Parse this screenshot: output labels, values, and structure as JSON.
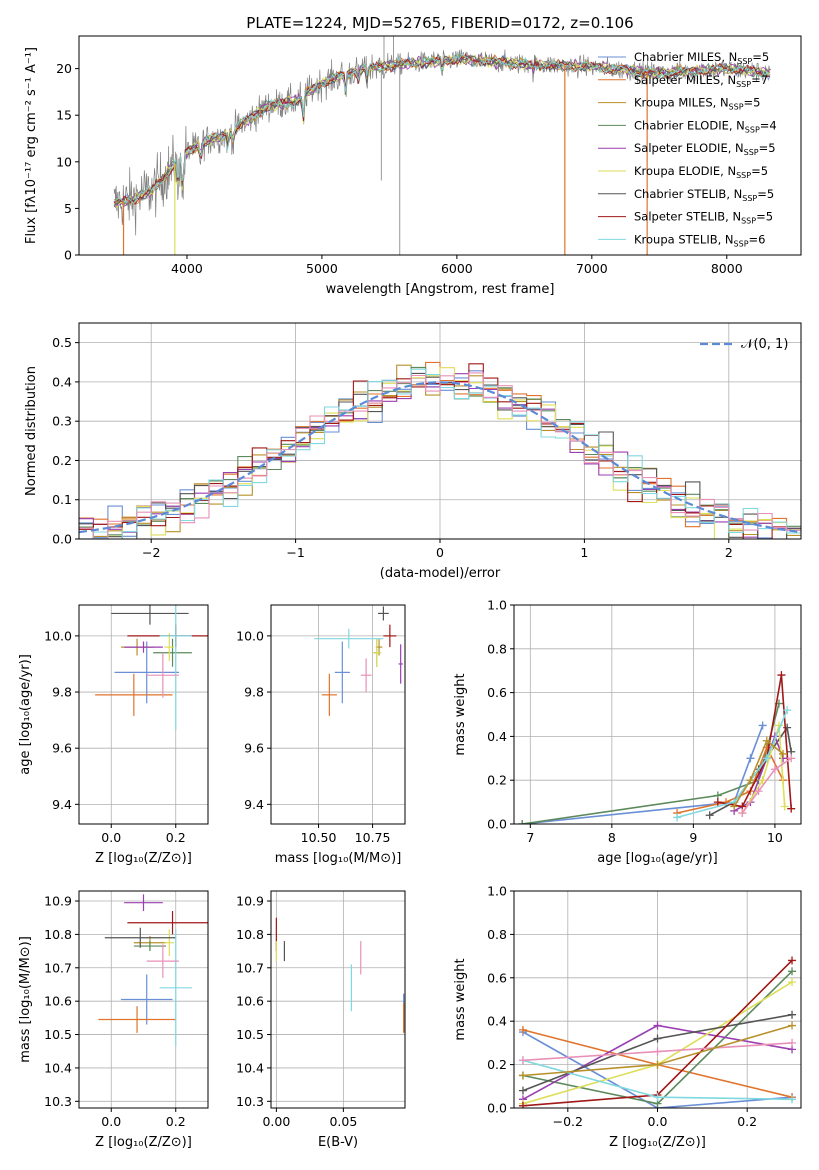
{
  "figure_title": "PLATE=1224, MJD=52765, FIBERID=0172, z=0.106",
  "colors": {
    "c0": "#6a8fd6",
    "c1": "#e0742c",
    "c2": "#b8902a",
    "c3": "#5c8a5c",
    "c4": "#9a3fb0",
    "c5": "#dede5a",
    "c6": "#555555",
    "c7": "#a01818",
    "c8": "#80d8e0",
    "c9": "#e890b8",
    "data": "#808080",
    "normal": "#5b8ad6"
  },
  "chart_data": [
    {
      "id": "spectrum",
      "type": "line",
      "xlabel": "wavelength [Angstrom, rest frame]",
      "ylabel": "Flux [fλ10⁻¹⁷ erg cm⁻² s⁻¹ A⁻¹]",
      "xlim": [
        3200,
        8550
      ],
      "ylim": [
        0,
        23.5
      ],
      "xticks": [
        4000,
        5000,
        6000,
        7000,
        8000
      ],
      "yticks": [
        0,
        5,
        10,
        15,
        20
      ],
      "grid": false,
      "legend": "right",
      "x_range": [
        3460,
        8330
      ],
      "continuum_anchors": [
        [
          3460,
          5.5
        ],
        [
          3600,
          6
        ],
        [
          3750,
          7
        ],
        [
          3950,
          10.5
        ],
        [
          4100,
          12
        ],
        [
          4300,
          13
        ],
        [
          4600,
          16
        ],
        [
          4800,
          16.5
        ],
        [
          5000,
          18.5
        ],
        [
          5300,
          20
        ],
        [
          5600,
          20.5
        ],
        [
          6000,
          21
        ],
        [
          6500,
          20.5
        ],
        [
          7000,
          20.2
        ],
        [
          7500,
          19.5
        ],
        [
          8000,
          20
        ],
        [
          8330,
          19.5
        ]
      ],
      "absorption_lines": [
        [
          3934,
          6.5
        ],
        [
          3969,
          6
        ],
        [
          4102,
          10
        ],
        [
          4304,
          11.5
        ],
        [
          4341,
          12
        ],
        [
          4861,
          14
        ],
        [
          5175,
          17.5
        ],
        [
          5270,
          18.6
        ],
        [
          5335,
          18.8
        ],
        [
          5890,
          19.5
        ],
        [
          6563,
          19.8
        ]
      ],
      "data_spikes": [
        [
          5577,
          0
        ],
        [
          5460,
          24
        ],
        [
          5530,
          24
        ],
        [
          5440,
          8
        ]
      ],
      "model_drops": [
        [
          3530,
          0,
          "c1"
        ],
        [
          3910,
          0,
          "c5"
        ],
        [
          6800,
          0,
          "c1"
        ],
        [
          7410,
          0,
          "c1"
        ]
      ],
      "series": [
        {
          "name": "Chabrier MILES, N",
          "sub": "SSP",
          "suffix": "=5",
          "color": "c0"
        },
        {
          "name": "Salpeter MILES, N",
          "sub": "SSP",
          "suffix": "=7",
          "color": "c1"
        },
        {
          "name": "Kroupa MILES, N",
          "sub": "SSP",
          "suffix": "=5",
          "color": "c2"
        },
        {
          "name": "Chabrier ELODIE, N",
          "sub": "SSP",
          "suffix": "=4",
          "color": "c3"
        },
        {
          "name": "Salpeter ELODIE, N",
          "sub": "SSP",
          "suffix": "=5",
          "color": "c4"
        },
        {
          "name": "Kroupa ELODIE, N",
          "sub": "SSP",
          "suffix": "=5",
          "color": "c5"
        },
        {
          "name": "Chabrier STELIB, N",
          "sub": "SSP",
          "suffix": "=5",
          "color": "c6"
        },
        {
          "name": "Salpeter STELIB, N",
          "sub": "SSP",
          "suffix": "=5",
          "color": "c7"
        },
        {
          "name": "Kroupa STELIB, N",
          "sub": "SSP",
          "suffix": "=6",
          "color": "c8"
        }
      ]
    },
    {
      "id": "residuals",
      "type": "line",
      "xlabel": "(data-model)/error",
      "ylabel": "Normed distribution",
      "xlim": [
        -2.5,
        2.5
      ],
      "ylim": [
        0,
        0.55
      ],
      "xticks": [
        -2,
        -1,
        0,
        1,
        2
      ],
      "yticks": [
        0.0,
        0.1,
        0.2,
        0.3,
        0.4,
        0.5
      ],
      "grid": true,
      "legend": "top-right",
      "legend_label": "𝒩(0, 1)",
      "bin_width": 0.1,
      "hist_colors": [
        "c0",
        "c1",
        "c2",
        "c3",
        "c4",
        "c5",
        "c6",
        "c7",
        "c8",
        "c9"
      ]
    },
    {
      "id": "age_vs_Z",
      "type": "scatter",
      "xlabel": "Z [log₁₀(Z/Z⊙)]",
      "ylabel": "age  [log₁₀(age/yr)]",
      "xlim": [
        -0.1,
        0.3
      ],
      "ylim": [
        9.33,
        10.11
      ],
      "xticks": [
        0.0,
        0.2
      ],
      "yticks": [
        9.4,
        9.6,
        9.8,
        10.0
      ],
      "grid": true,
      "points": [
        {
          "x": 0.11,
          "y": 9.87,
          "xerr": 0.2,
          "yerr": 0.22,
          "color": "c0"
        },
        {
          "x": 0.07,
          "y": 9.79,
          "xerr": 0.24,
          "yerr": 0.15,
          "color": "c1"
        },
        {
          "x": 0.08,
          "y": 9.96,
          "xerr": 0.1,
          "yerr": 0.06,
          "color": "c2"
        },
        {
          "x": 0.19,
          "y": 9.94,
          "xerr": 0.12,
          "yerr": 0.1,
          "color": "c3"
        },
        {
          "x": 0.1,
          "y": 9.96,
          "xerr": 0.12,
          "yerr": 0.04,
          "color": "c4"
        },
        {
          "x": 0.18,
          "y": 9.96,
          "xerr": 0.03,
          "yerr": 0.1,
          "color": "c5"
        },
        {
          "x": 0.12,
          "y": 10.08,
          "xerr": 0.24,
          "yerr": 0.08,
          "color": "c6"
        },
        {
          "x": 0.2,
          "y": 10.0,
          "xerr": 0.3,
          "yerr": 0.08,
          "color": "c7"
        },
        {
          "x": 0.2,
          "y": 10.0,
          "xerr": 0.1,
          "yerr": 0.67,
          "color": "c8"
        },
        {
          "x": 0.16,
          "y": 9.86,
          "xerr": 0.1,
          "yerr": 0.16,
          "color": "c9"
        }
      ]
    },
    {
      "id": "age_vs_mass",
      "type": "scatter",
      "xlabel": "mass [log₁₀(M/M⊙)]",
      "ylabel": "",
      "xlim": [
        10.28,
        10.9
      ],
      "ylim": [
        9.33,
        10.11
      ],
      "xticks": [
        10.5,
        10.75
      ],
      "yticks": [
        9.4,
        9.6,
        9.8,
        10.0
      ],
      "grid": true,
      "points": [
        {
          "x": 10.61,
          "y": 9.87,
          "xerr": 0.07,
          "yerr": 0.22,
          "color": "c0"
        },
        {
          "x": 10.55,
          "y": 9.79,
          "xerr": 0.07,
          "yerr": 0.15,
          "color": "c1"
        },
        {
          "x": 10.78,
          "y": 9.96,
          "xerr": 0.03,
          "yerr": 0.06,
          "color": "c2"
        },
        {
          "x": 10.77,
          "y": 9.94,
          "xerr": 0.03,
          "yerr": 0.1,
          "color": "c3"
        },
        {
          "x": 10.88,
          "y": 9.9,
          "xerr": 0.02,
          "yerr": 0.14,
          "color": "c4"
        },
        {
          "x": 10.77,
          "y": 9.94,
          "xerr": 0.04,
          "yerr": 0.1,
          "color": "c5"
        },
        {
          "x": 10.8,
          "y": 10.08,
          "xerr": 0.05,
          "yerr": 0.05,
          "color": "c6"
        },
        {
          "x": 10.83,
          "y": 10.0,
          "xerr": 0.06,
          "yerr": 0.08,
          "color": "c7"
        },
        {
          "x": 10.64,
          "y": 9.99,
          "xerr": 0.32,
          "yerr": 0.07,
          "color": "c8"
        },
        {
          "x": 10.72,
          "y": 9.86,
          "xerr": 0.05,
          "yerr": 0.12,
          "color": "c9"
        }
      ]
    },
    {
      "id": "weight_vs_age",
      "type": "line",
      "xlabel": "age  [log₁₀(age/yr)]",
      "ylabel": "mass weight",
      "xlim": [
        6.8,
        10.32
      ],
      "ylim": [
        0,
        1.0
      ],
      "xticks": [
        7,
        8,
        9,
        10
      ],
      "yticks": [
        0.0,
        0.2,
        0.4,
        0.6,
        0.8,
        1.0
      ],
      "grid": true,
      "series": [
        {
          "color": "c0",
          "x": [
            6.9,
            9.5,
            9.7,
            9.85
          ],
          "y": [
            0.0,
            0.1,
            0.3,
            0.45
          ]
        },
        {
          "color": "c3",
          "x": [
            6.9,
            9.3,
            9.8,
            10.05
          ],
          "y": [
            0.0,
            0.13,
            0.2,
            0.55
          ]
        },
        {
          "color": "c1",
          "x": [
            8.8,
            9.4,
            9.7,
            9.9,
            10.1
          ],
          "y": [
            0.05,
            0.1,
            0.15,
            0.35,
            0.2
          ]
        },
        {
          "color": "c6",
          "x": [
            9.2,
            9.5,
            9.8,
            10.15,
            10.2
          ],
          "y": [
            0.04,
            0.1,
            0.25,
            0.44,
            0.33
          ]
        },
        {
          "color": "c4",
          "x": [
            9.5,
            9.7,
            10.0,
            10.1
          ],
          "y": [
            0.06,
            0.1,
            0.4,
            0.3
          ]
        },
        {
          "color": "c5",
          "x": [
            9.6,
            9.85,
            10.05,
            10.12
          ],
          "y": [
            0.05,
            0.2,
            0.45,
            0.08
          ]
        },
        {
          "color": "c7",
          "x": [
            9.3,
            9.6,
            9.9,
            10.08,
            10.2
          ],
          "y": [
            0.1,
            0.08,
            0.3,
            0.68,
            0.07
          ]
        },
        {
          "color": "c8",
          "x": [
            8.8,
            9.5,
            9.9,
            10.15
          ],
          "y": [
            0.03,
            0.1,
            0.3,
            0.52
          ]
        },
        {
          "color": "c9",
          "x": [
            9.6,
            9.8,
            10.0,
            10.2
          ],
          "y": [
            0.05,
            0.15,
            0.25,
            0.3
          ]
        },
        {
          "color": "c2",
          "x": [
            9.5,
            9.7,
            9.9,
            10.1
          ],
          "y": [
            0.08,
            0.2,
            0.38,
            0.32
          ]
        }
      ]
    },
    {
      "id": "mass_vs_Z",
      "type": "scatter",
      "xlabel": "Z [log₁₀(Z/Z⊙)]",
      "ylabel": "mass [log₁₀(M/M⊙)]",
      "xlim": [
        -0.1,
        0.3
      ],
      "ylim": [
        10.28,
        10.93
      ],
      "xticks": [
        0.0,
        0.2
      ],
      "yticks": [
        10.3,
        10.4,
        10.5,
        10.6,
        10.7,
        10.8,
        10.9
      ],
      "grid": true,
      "points": [
        {
          "x": 0.11,
          "y": 10.605,
          "xerr": 0.16,
          "yerr": 0.15,
          "color": "c0"
        },
        {
          "x": 0.08,
          "y": 10.545,
          "xerr": 0.24,
          "yerr": 0.08,
          "color": "c1"
        },
        {
          "x": 0.12,
          "y": 10.775,
          "xerr": 0.1,
          "yerr": 0.04,
          "color": "c2"
        },
        {
          "x": 0.12,
          "y": 10.765,
          "xerr": 0.1,
          "yerr": 0.03,
          "color": "c3"
        },
        {
          "x": 0.1,
          "y": 10.895,
          "xerr": 0.12,
          "yerr": 0.05,
          "color": "c4"
        },
        {
          "x": 0.18,
          "y": 10.775,
          "xerr": 0.03,
          "yerr": 0.08,
          "color": "c5"
        },
        {
          "x": 0.09,
          "y": 10.79,
          "xerr": 0.22,
          "yerr": 0.06,
          "color": "c6"
        },
        {
          "x": 0.19,
          "y": 10.835,
          "xerr": 0.28,
          "yerr": 0.07,
          "color": "c7"
        },
        {
          "x": 0.2,
          "y": 10.64,
          "xerr": 0.1,
          "yerr": 0.35,
          "color": "c8"
        },
        {
          "x": 0.16,
          "y": 10.72,
          "xerr": 0.1,
          "yerr": 0.1,
          "color": "c9"
        }
      ]
    },
    {
      "id": "mass_vs_ebv",
      "type": "scatter",
      "xlabel": "E(B-V)",
      "ylabel": "",
      "xlim": [
        -0.004,
        0.096
      ],
      "ylim": [
        10.28,
        10.93
      ],
      "xticks": [
        0.0,
        0.05
      ],
      "yticks": [
        10.3,
        10.4,
        10.5,
        10.6,
        10.7,
        10.8,
        10.9
      ],
      "grid": true,
      "points": [
        {
          "x": 0.0,
          "y": 10.8,
          "xerr": 0,
          "yerr": 0.1,
          "color": "c7"
        },
        {
          "x": 0.0,
          "y": 10.75,
          "xerr": 0,
          "yerr": 0.06,
          "color": "c5"
        },
        {
          "x": 0.006,
          "y": 10.75,
          "xerr": 0,
          "yerr": 0.06,
          "color": "c6"
        },
        {
          "x": 0.056,
          "y": 10.64,
          "xerr": 0,
          "yerr": 0.14,
          "color": "c8"
        },
        {
          "x": 0.063,
          "y": 10.73,
          "xerr": 0,
          "yerr": 0.1,
          "color": "c9"
        },
        {
          "x": 0.095,
          "y": 10.565,
          "xerr": 0,
          "yerr": 0.115,
          "color": "c0"
        },
        {
          "x": 0.095,
          "y": 10.55,
          "xerr": 0,
          "yerr": 0.09,
          "color": "c1"
        }
      ]
    },
    {
      "id": "weight_vs_Z",
      "type": "line",
      "xlabel": "Z [log₁₀(Z/Z⊙)]",
      "ylabel": "mass weight",
      "xlim": [
        -0.32,
        0.32
      ],
      "ylim": [
        0,
        1.0
      ],
      "xticks": [
        -0.2,
        0.0,
        0.2
      ],
      "yticks": [
        0.0,
        0.2,
        0.4,
        0.6,
        0.8,
        1.0
      ],
      "grid": true,
      "series": [
        {
          "color": "c0",
          "x": [
            -0.3,
            0.0,
            0.3
          ],
          "y": [
            0.35,
            0.0,
            0.05
          ]
        },
        {
          "color": "c1",
          "x": [
            -0.3,
            0.0,
            0.3
          ],
          "y": [
            0.36,
            0.2,
            0.05
          ]
        },
        {
          "color": "c3",
          "x": [
            -0.3,
            0.0,
            0.3
          ],
          "y": [
            0.15,
            0.02,
            0.63
          ]
        },
        {
          "color": "c4",
          "x": [
            -0.3,
            0.0,
            0.3
          ],
          "y": [
            0.04,
            0.38,
            0.27
          ]
        },
        {
          "color": "c5",
          "x": [
            -0.3,
            0.0,
            0.3
          ],
          "y": [
            0.02,
            0.2,
            0.58
          ]
        },
        {
          "color": "c6",
          "x": [
            -0.3,
            0.0,
            0.3
          ],
          "y": [
            0.08,
            0.32,
            0.43
          ]
        },
        {
          "color": "c7",
          "x": [
            -0.3,
            0.0,
            0.3
          ],
          "y": [
            0.01,
            0.06,
            0.68
          ]
        },
        {
          "color": "c8",
          "x": [
            -0.3,
            0.0,
            0.3
          ],
          "y": [
            0.22,
            0.05,
            0.04
          ]
        },
        {
          "color": "c9",
          "x": [
            -0.3,
            0.0,
            0.3
          ],
          "y": [
            0.22,
            0.26,
            0.3
          ]
        },
        {
          "color": "c2",
          "x": [
            -0.3,
            0.0,
            0.3
          ],
          "y": [
            0.15,
            0.2,
            0.38
          ]
        }
      ]
    }
  ]
}
